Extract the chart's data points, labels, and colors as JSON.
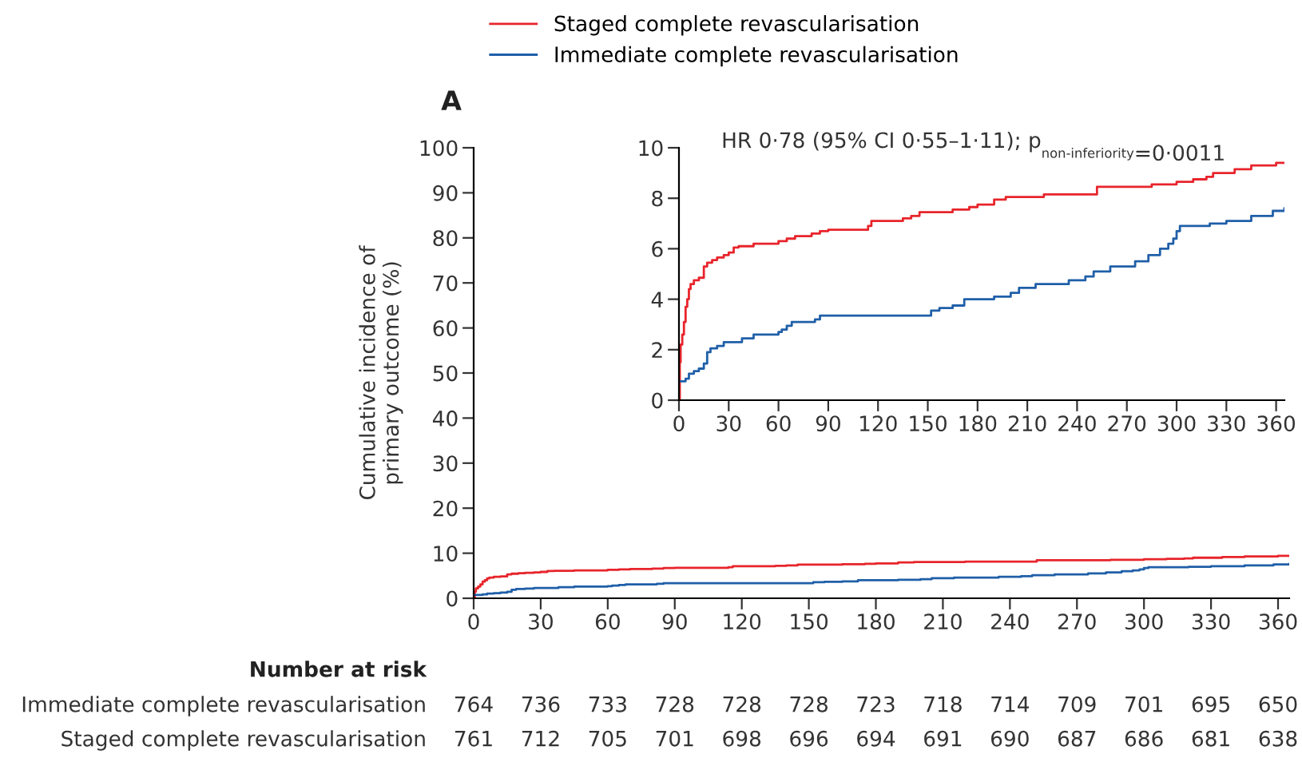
{
  "chart_data": [
    {
      "type": "step",
      "ylabel": "Cumulative incidence of\nprimary outcome (%)",
      "xlim": [
        0,
        365
      ],
      "ylim": [
        0,
        100
      ],
      "xticks": [
        0,
        30,
        60,
        90,
        120,
        150,
        180,
        210,
        240,
        270,
        300,
        330,
        360
      ],
      "yticks": [
        0,
        10,
        20,
        30,
        40,
        50,
        60,
        70,
        80,
        90,
        100
      ],
      "grid": false,
      "legend": "top",
      "marker": "none",
      "line_style": "solid",
      "annotations": [
        "A",
        "Number at risk",
        "Immediate complete revascularisation",
        "764",
        "736",
        "733",
        "728",
        "728",
        "728",
        "723",
        "718",
        "714",
        "709",
        "701",
        "695",
        "650",
        "Staged complete revascularisation",
        "761",
        "712",
        "705",
        "701",
        "698",
        "696",
        "694",
        "691",
        "690",
        "687",
        "686",
        "681",
        "638"
      ],
      "series": [
        {
          "name": "Staged complete revascularisation",
          "color": "#e8242b",
          "x": [
            0,
            0.5,
            1,
            2,
            3,
            4,
            5,
            6,
            7,
            9,
            12,
            15,
            17,
            20,
            23,
            27,
            30,
            33,
            36,
            45,
            60,
            65,
            70,
            80,
            85,
            90,
            114,
            116,
            135,
            140,
            145,
            165,
            175,
            180,
            190,
            197,
            220,
            252,
            285,
            300,
            310,
            318,
            322,
            335,
            345,
            360,
            365
          ],
          "values": [
            0,
            1.5,
            2.2,
            2.6,
            3.1,
            3.7,
            4.0,
            4.4,
            4.6,
            4.75,
            4.85,
            5.3,
            5.45,
            5.55,
            5.65,
            5.75,
            5.85,
            6.05,
            6.1,
            6.2,
            6.3,
            6.4,
            6.5,
            6.6,
            6.7,
            6.75,
            6.9,
            7.1,
            7.2,
            7.3,
            7.45,
            7.55,
            7.65,
            7.75,
            7.95,
            8.05,
            8.15,
            8.45,
            8.55,
            8.65,
            8.75,
            8.85,
            9.0,
            9.15,
            9.3,
            9.4,
            9.4
          ]
        },
        {
          "name": "Immediate complete revascularisation",
          "color": "#1f5fa8",
          "x": [
            0,
            4,
            6,
            9,
            12,
            15,
            17,
            19,
            23,
            27,
            38,
            45,
            60,
            62,
            65,
            68,
            82,
            85,
            152,
            157,
            165,
            172,
            190,
            200,
            205,
            215,
            235,
            245,
            250,
            260,
            275,
            283,
            290,
            295,
            298,
            300,
            302,
            320,
            330,
            345,
            358,
            365
          ],
          "values": [
            0.75,
            0.85,
            1.05,
            1.15,
            1.25,
            1.45,
            1.9,
            2.05,
            2.15,
            2.3,
            2.45,
            2.6,
            2.7,
            2.8,
            2.95,
            3.1,
            3.2,
            3.35,
            3.55,
            3.65,
            3.75,
            4.0,
            4.1,
            4.25,
            4.45,
            4.6,
            4.75,
            4.9,
            5.1,
            5.3,
            5.5,
            5.75,
            6.0,
            6.2,
            6.4,
            6.7,
            6.9,
            7.0,
            7.1,
            7.3,
            7.5,
            7.6
          ]
        }
      ]
    },
    {
      "type": "step",
      "title": "HR 0·78 (95% CI 0·55–1·11); p$_{non-inferiority}$=0·0011",
      "xlim": [
        0,
        365
      ],
      "ylim": [
        0,
        10
      ],
      "xticks": [
        0,
        30,
        60,
        90,
        120,
        150,
        180,
        210,
        240,
        270,
        300,
        330,
        360
      ],
      "yticks": [
        0,
        2,
        4,
        6,
        8,
        10
      ],
      "grid": false,
      "marker": "none",
      "line_style": "solid",
      "series": [
        {
          "color": "#e8242b",
          "x": [
            0,
            0.5,
            1,
            2,
            3,
            4,
            5,
            6,
            7,
            9,
            12,
            15,
            17,
            20,
            23,
            27,
            30,
            33,
            36,
            45,
            60,
            65,
            70,
            80,
            85,
            90,
            114,
            116,
            135,
            140,
            145,
            165,
            175,
            180,
            190,
            197,
            220,
            252,
            285,
            300,
            310,
            318,
            322,
            335,
            345,
            360,
            365
          ],
          "values": [
            0,
            1.5,
            2.2,
            2.6,
            3.1,
            3.7,
            4.0,
            4.4,
            4.6,
            4.75,
            4.85,
            5.3,
            5.45,
            5.55,
            5.65,
            5.75,
            5.85,
            6.05,
            6.1,
            6.2,
            6.3,
            6.4,
            6.5,
            6.6,
            6.7,
            6.75,
            6.9,
            7.1,
            7.2,
            7.3,
            7.45,
            7.55,
            7.65,
            7.75,
            7.95,
            8.05,
            8.15,
            8.45,
            8.55,
            8.65,
            8.75,
            8.85,
            9.0,
            9.15,
            9.3,
            9.4,
            9.4
          ]
        },
        {
          "color": "#1f5fa8",
          "x": [
            0,
            4,
            6,
            9,
            12,
            15,
            17,
            19,
            23,
            27,
            38,
            45,
            60,
            62,
            65,
            68,
            82,
            85,
            152,
            157,
            165,
            172,
            190,
            200,
            205,
            215,
            235,
            245,
            250,
            260,
            275,
            283,
            290,
            295,
            298,
            300,
            302,
            320,
            330,
            345,
            358,
            365
          ],
          "values": [
            0.75,
            0.85,
            1.05,
            1.15,
            1.25,
            1.45,
            1.9,
            2.05,
            2.15,
            2.3,
            2.45,
            2.6,
            2.7,
            2.8,
            2.95,
            3.1,
            3.2,
            3.35,
            3.55,
            3.65,
            3.75,
            4.0,
            4.1,
            4.25,
            4.45,
            4.6,
            4.75,
            4.9,
            5.1,
            5.3,
            5.5,
            5.75,
            6.0,
            6.2,
            6.4,
            6.7,
            6.9,
            7.0,
            7.1,
            7.3,
            7.5,
            7.6
          ]
        }
      ]
    }
  ]
}
